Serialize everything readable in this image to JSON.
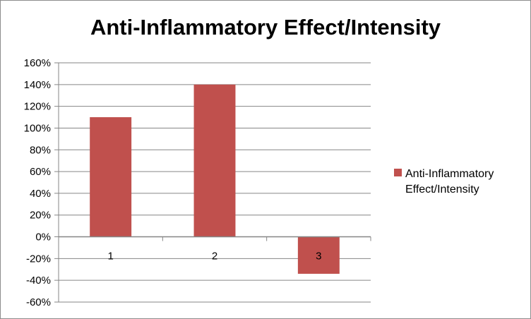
{
  "chart_data": {
    "type": "bar",
    "title": "Anti-Inflammatory Effect/Intensity",
    "xlabel": "",
    "ylabel": "",
    "categories": [
      "1",
      "2",
      "3"
    ],
    "series": [
      {
        "name": "Anti-Inflammatory Effect/Intensity",
        "values": [
          110,
          140,
          -34
        ]
      }
    ],
    "y_ticks": [
      "160%",
      "140%",
      "120%",
      "100%",
      "80%",
      "60%",
      "40%",
      "20%",
      "0%",
      "-20%",
      "-40%",
      "-60%"
    ],
    "ylim": [
      -60,
      160
    ],
    "y_step": 20,
    "grid": true,
    "legend": "right",
    "legend_lines": [
      "Anti-Inflammatory",
      "Effect/Intensity"
    ],
    "bar_color": "#c0504d",
    "grid_color": "#868686"
  }
}
